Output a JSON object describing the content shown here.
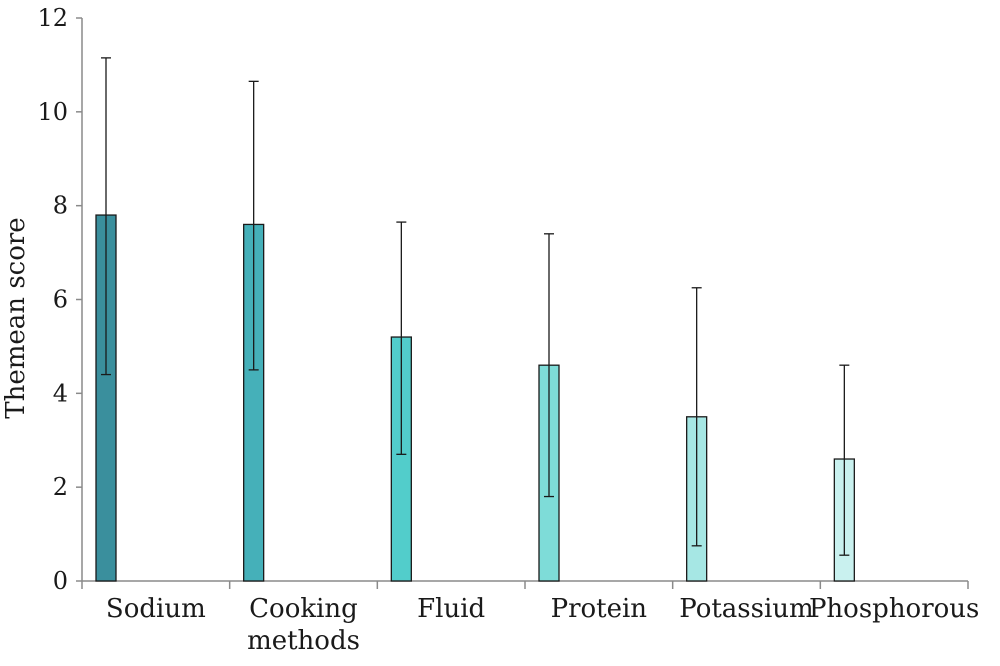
{
  "chart_data": {
    "type": "bar",
    "title": "",
    "xlabel": "",
    "ylabel": "Themean score",
    "ylim": [
      0,
      12
    ],
    "yticks": [
      0,
      2,
      4,
      6,
      8,
      10,
      12
    ],
    "grid": false,
    "legend": "none",
    "categories": [
      [
        "Sodium"
      ],
      [
        "Cooking",
        "methods"
      ],
      [
        "Fluid"
      ],
      [
        "Protein"
      ],
      [
        "Potassium"
      ],
      [
        "Phosphorous"
      ]
    ],
    "values": [
      7.8,
      7.6,
      5.2,
      4.6,
      3.5,
      2.6
    ],
    "error_low": [
      4.4,
      4.5,
      2.7,
      1.8,
      0.75,
      0.55
    ],
    "error_high": [
      11.15,
      10.65,
      7.65,
      7.4,
      6.25,
      4.6
    ],
    "colors": [
      "#3a8f9d",
      "#45b0b9",
      "#52cdcb",
      "#7edcd8",
      "#a6e7e4",
      "#c9f1ef"
    ],
    "bar_edge_color": "#1a1a1a"
  }
}
